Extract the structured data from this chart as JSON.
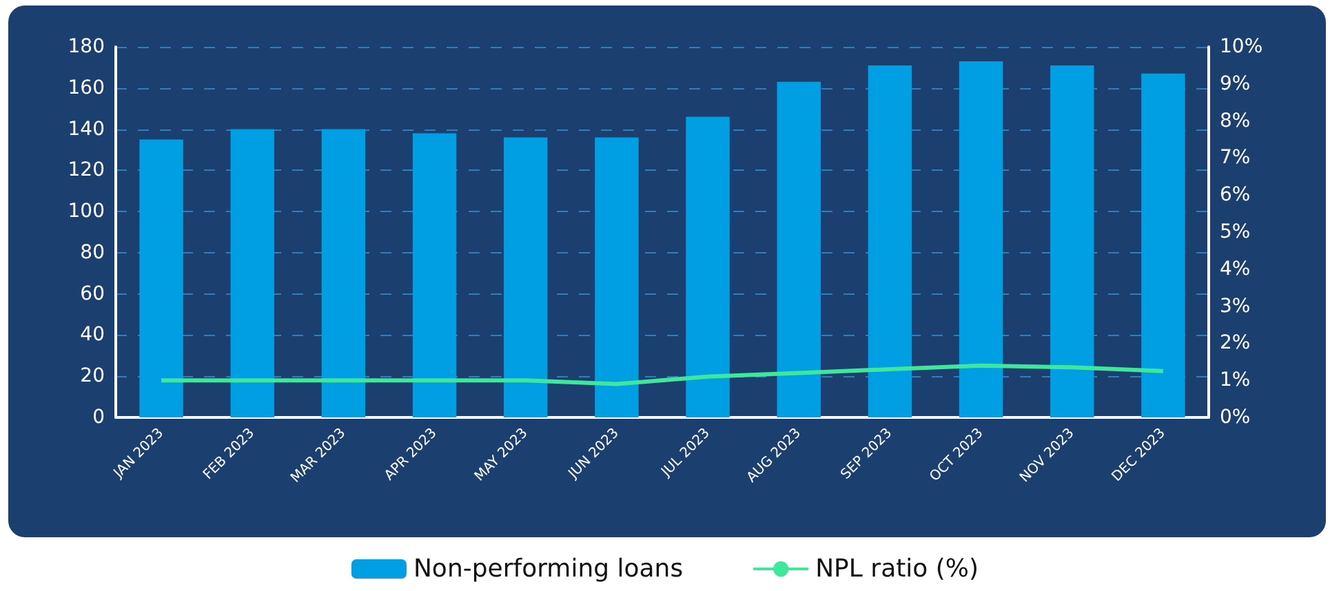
{
  "chart_data": {
    "type": "bar",
    "categories": [
      "JAN 2023",
      "FEB 2023",
      "MAR 2023",
      "APR 2023",
      "MAY 2023",
      "JUN 2023",
      "JUL 2023",
      "AUG 2023",
      "SEP 2023",
      "OCT 2023",
      "NOV 2023",
      "DEC 2023"
    ],
    "series": [
      {
        "name": "Non-performing loans",
        "color": "#009fe3",
        "values": [
          135,
          140,
          140,
          138,
          136,
          136,
          146,
          163,
          171,
          173,
          171,
          167
        ]
      },
      {
        "name": "NPL ratio (%)",
        "type": "line",
        "axis": "y2",
        "color": "#3ee89a",
        "values": [
          1.0,
          1.0,
          1.0,
          1.0,
          1.0,
          0.9,
          1.1,
          1.2,
          1.3,
          1.4,
          1.35,
          1.25
        ]
      }
    ],
    "ylim": [
      0,
      180
    ],
    "yticks": [
      0,
      20,
      40,
      60,
      80,
      100,
      120,
      140,
      160,
      180
    ],
    "y2lim": [
      0,
      10
    ],
    "y2ticks": [
      {
        "value": 0,
        "label": "0%"
      },
      {
        "value": 1,
        "label": "1%"
      },
      {
        "value": 2,
        "label": "2%"
      },
      {
        "value": 3,
        "label": "3%"
      },
      {
        "value": 4,
        "label": "4%"
      },
      {
        "value": 5,
        "label": "5%"
      },
      {
        "value": 6,
        "label": "6%"
      },
      {
        "value": 7,
        "label": "7%"
      },
      {
        "value": 8,
        "label": "8%"
      },
      {
        "value": 9,
        "label": "9%"
      },
      {
        "value": 10,
        "label": "10%"
      }
    ],
    "grid": "y",
    "legend": "bottom",
    "marker": "none"
  }
}
